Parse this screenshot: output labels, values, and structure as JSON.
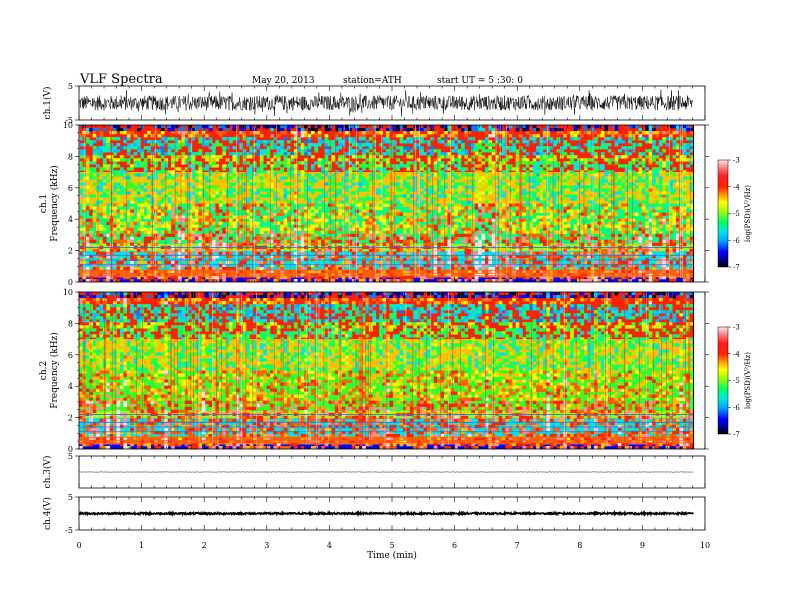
{
  "header": {
    "title": "VLF  Spectra",
    "date": "May 20, 2013",
    "station": "station=ATH",
    "start": "start  UT  =   5  :30: 0"
  },
  "colors": {
    "spec_scale": [
      "#000000",
      "#000080",
      "#0000ff",
      "#0080ff",
      "#00c0ff",
      "#00e6e6",
      "#00ff80",
      "#30ff30",
      "#b0ff00",
      "#ffff00",
      "#ffc000",
      "#ff6000",
      "#ff2000",
      "#ff9090",
      "#ffe0e0"
    ]
  },
  "chart_data": [
    {
      "type": "line",
      "panel": "ch1-waveform",
      "ylabel": "ch.1(V)",
      "ylim": [
        -5,
        5
      ],
      "yticks": [
        "5",
        "-5"
      ],
      "xlim": [
        0,
        10
      ],
      "note": "broadband noise waveform, amplitude roughly ±2 V",
      "grid": false
    },
    {
      "type": "heatmap",
      "panel": "ch1-spectrogram",
      "ylabel_top": "ch.1",
      "ylabel": "Frequency  (kHz)",
      "ylim": [
        0,
        10
      ],
      "yticks": [
        "0",
        "2",
        "4",
        "6",
        "8",
        "10"
      ],
      "xlim": [
        0,
        9.8
      ],
      "colorbar": {
        "label": "log(PSD)(V²/Hz)",
        "range": [
          -7,
          -3
        ],
        "ticks": [
          "-3",
          "-4",
          "-5",
          "-6",
          "-7"
        ]
      },
      "bands": [
        {
          "f_khz": [
            0,
            0.3
          ],
          "logpsd": -6.5
        },
        {
          "f_khz": [
            0.3,
            0.8
          ],
          "logpsd": -4.0
        },
        {
          "f_khz": [
            0.8,
            2.0
          ],
          "logpsd": -5.6
        },
        {
          "f_khz": [
            2.0,
            2.4
          ],
          "logpsd": -4.8
        },
        {
          "f_khz": [
            2.4,
            5.0
          ],
          "logpsd": -5.2
        },
        {
          "f_khz": [
            5.0,
            7.0
          ],
          "logpsd": -4.2
        },
        {
          "f_khz": [
            7.0,
            10.0
          ],
          "logpsd": -3.7
        }
      ]
    },
    {
      "type": "heatmap",
      "panel": "ch2-spectrogram",
      "ylabel_top": "ch.2",
      "ylabel": "Frequency  (kHz)",
      "ylim": [
        0,
        10
      ],
      "yticks": [
        "0",
        "2",
        "4",
        "6",
        "8",
        "10"
      ],
      "xlim": [
        0,
        9.8
      ],
      "colorbar": {
        "label": "log(PSD)(V²/Hz)",
        "range": [
          -7,
          -3
        ],
        "ticks": [
          "-3",
          "-4",
          "-5",
          "-6",
          "-7"
        ]
      },
      "bands": [
        {
          "f_khz": [
            0,
            0.3
          ],
          "logpsd": -6.5
        },
        {
          "f_khz": [
            0.3,
            0.8
          ],
          "logpsd": -4.0
        },
        {
          "f_khz": [
            0.8,
            2.0
          ],
          "logpsd": -5.6
        },
        {
          "f_khz": [
            2.0,
            2.4
          ],
          "logpsd": -4.8
        },
        {
          "f_khz": [
            2.4,
            5.0
          ],
          "logpsd": -5.1
        },
        {
          "f_khz": [
            5.0,
            7.0
          ],
          "logpsd": -4.1
        },
        {
          "f_khz": [
            7.0,
            10.0
          ],
          "logpsd": -3.7
        }
      ]
    },
    {
      "type": "line",
      "panel": "ch3-waveform",
      "ylabel": "ch.3(V)",
      "ylim": [
        -5,
        5
      ],
      "yticks": [
        "5"
      ],
      "xlim": [
        0,
        10
      ],
      "note": "near-flat trace close to 0 V",
      "grid": false
    },
    {
      "type": "line",
      "panel": "ch4-waveform",
      "ylabel": "ch.4(V)",
      "ylim": [
        -5,
        5
      ],
      "yticks": [
        "5",
        "-5"
      ],
      "xlim": [
        0,
        10
      ],
      "note": "thick near-zero trace",
      "grid": false
    }
  ],
  "xaxis": {
    "label": "Time  (min)",
    "ticks": [
      "0",
      "1",
      "2",
      "3",
      "4",
      "5",
      "6",
      "7",
      "8",
      "9",
      "10"
    ]
  }
}
